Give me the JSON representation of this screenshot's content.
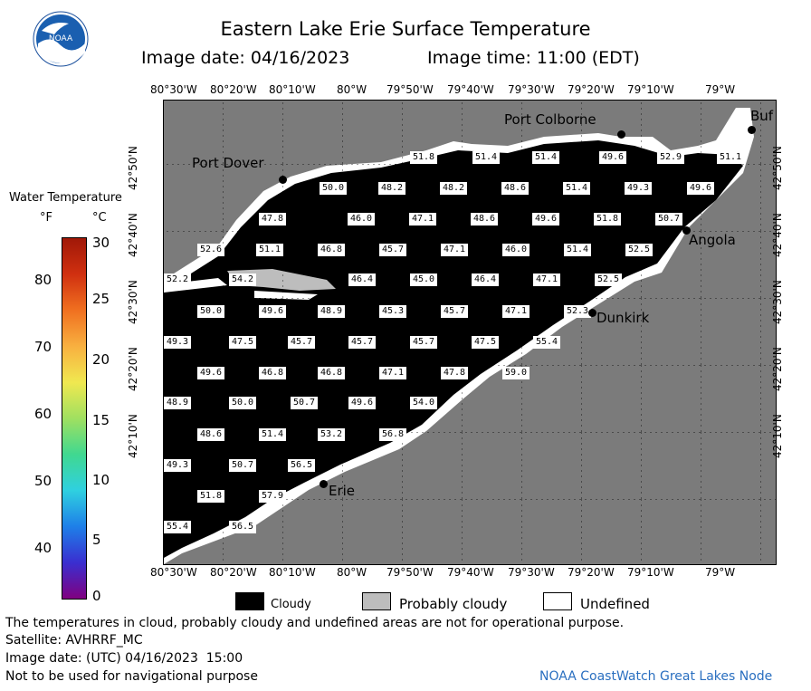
{
  "header": {
    "title": "Eastern Lake Erie Surface Temperature",
    "image_date": "Image date: 04/16/2023",
    "image_time": "Image time: 11:00 (EDT)",
    "logo_text": "NOAA"
  },
  "legend": {
    "title": "Water Temperature",
    "unit_f": "°F",
    "unit_c": "°C",
    "f_labels": [
      "80",
      "70",
      "60",
      "50",
      "40"
    ],
    "c_labels": [
      "30",
      "25",
      "20",
      "15",
      "10",
      "5",
      "0"
    ],
    "gradient_colors": [
      "#800080",
      "#3a2fd0",
      "#1e7fe8",
      "#2fd0e0",
      "#40d890",
      "#a0e060",
      "#f0e850",
      "#f8b040",
      "#f07020",
      "#d03010",
      "#a01808"
    ]
  },
  "map": {
    "lon_labels_top": [
      "80°30'W",
      "80°20'W",
      "80°10'W",
      "80°W",
      "79°50'W",
      "79°40'W",
      "79°30'W",
      "79°20'W",
      "79°10'W",
      "79°W"
    ],
    "lon_labels_bottom": [
      "80°30'W",
      "80°20'W",
      "80°10'W",
      "80°W",
      "79°50'W",
      "79°40'W",
      "79°30'W",
      "79°20'W",
      "79°10'W",
      "79°W"
    ],
    "lat_labels": [
      "42°50'N",
      "42°40'N",
      "42°30'N",
      "42°20'N",
      "42°10'N"
    ],
    "cities": [
      {
        "name": "Port Colborne"
      },
      {
        "name": "Port Dover"
      },
      {
        "name": "Buf"
      },
      {
        "name": "Angola"
      },
      {
        "name": "Dunkirk"
      },
      {
        "name": "Erie"
      }
    ],
    "temperatures": [
      "51.8",
      "51.4",
      "51.4",
      "49.6",
      "52.9",
      "51.1",
      "50.0",
      "48.2",
      "48.2",
      "48.6",
      "51.4",
      "49.3",
      "49.6",
      "47.8",
      "46.0",
      "47.1",
      "48.6",
      "49.6",
      "51.8",
      "50.7",
      "52.6",
      "51.1",
      "46.8",
      "45.7",
      "47.1",
      "46.0",
      "51.4",
      "52.5",
      "52.2",
      "54.2",
      "46.4",
      "45.0",
      "46.4",
      "47.1",
      "52.5",
      "50.0",
      "49.6",
      "48.9",
      "45.3",
      "45.7",
      "47.1",
      "52.3",
      "49.3",
      "47.5",
      "45.7",
      "45.7",
      "45.7",
      "47.5",
      "55.4",
      "49.6",
      "46.8",
      "46.8",
      "47.1",
      "47.8",
      "59.0",
      "48.9",
      "50.0",
      "50.7",
      "49.6",
      "54.0",
      "48.6",
      "51.4",
      "53.2",
      "56.8",
      "49.3",
      "50.7",
      "56.5",
      "51.8",
      "57.9",
      "55.4",
      "56.5"
    ]
  },
  "key": {
    "cloudy": "Cloudy",
    "probably_cloudy": "Probably cloudy",
    "undefined": "Undefined",
    "colors": {
      "cloudy": "#000000",
      "probably_cloudy": "#bdbdbd",
      "undefined": "#ffffff",
      "land": "#7b7b7b"
    }
  },
  "footer": {
    "disclaimer": "The temperatures in cloud, probably cloudy and undefined areas are not for operational purpose.",
    "satellite": "Satellite: AVHRRF_MC",
    "utc_date": "Image date: (UTC) 04/16/2023  15:00",
    "nav_warning": "Not to be used for navigational purpose",
    "credit": "NOAA CoastWatch Great Lakes Node"
  }
}
